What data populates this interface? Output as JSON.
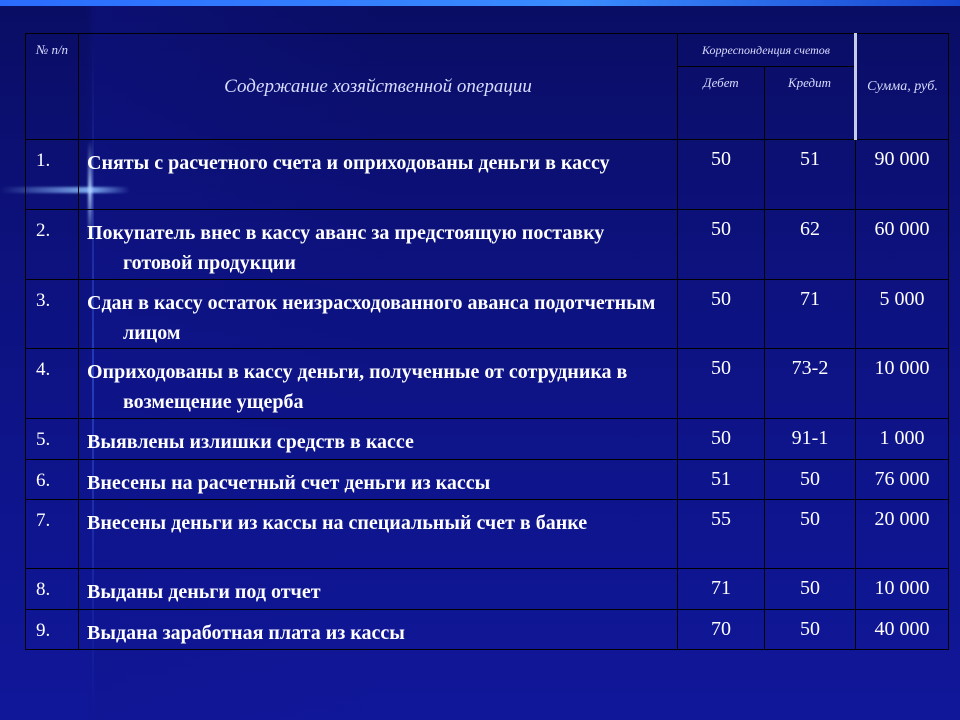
{
  "header": {
    "num": "№ п/п",
    "content": "Содержание хозяйственной операции",
    "correspondence": "Корреспонденция счетов",
    "debit": "Дебет",
    "credit": "Кредит",
    "sum": "Сумма, руб."
  },
  "rows": [
    {
      "num": "1.",
      "text": "Сняты с расчетного счета и оприходованы деньги в кассу",
      "debit": "50",
      "credit": "51",
      "sum": "90 000"
    },
    {
      "num": "2.",
      "text": "Покупатель внес в кассу аванс за предстоящую поставку готовой продукции",
      "debit": "50",
      "credit": "62",
      "sum": "60 000"
    },
    {
      "num": "3.",
      "text": "Сдан в кассу остаток неизрасходованного аванса подотчетным лицом",
      "debit": "50",
      "credit": "71",
      "sum": "5 000"
    },
    {
      "num": "4.",
      "text": "Оприходованы в кассу деньги, полученные от сотрудника в возмещение ущерба",
      "debit": "50",
      "credit": "73-2",
      "sum": "10 000"
    },
    {
      "num": "5.",
      "text": "Выявлены излишки средств в кассе",
      "debit": "50",
      "credit": "91-1",
      "sum": "1 000"
    },
    {
      "num": "6.",
      "text": "Внесены на расчетный счет деньги из кассы",
      "debit": "51",
      "credit": "50",
      "sum": "76 000"
    },
    {
      "num": "7.",
      "text": "Внесены деньги из кассы на специальный счет в банке",
      "debit": "55",
      "credit": "50",
      "sum": "20 000"
    },
    {
      "num": "8.",
      "text": "Выданы деньги под отчет",
      "debit": "71",
      "credit": "50",
      "sum": "10 000"
    },
    {
      "num": "9.",
      "text": "Выдана заработная плата из кассы",
      "debit": "70",
      "credit": "50",
      "sum": "40 000"
    }
  ]
}
